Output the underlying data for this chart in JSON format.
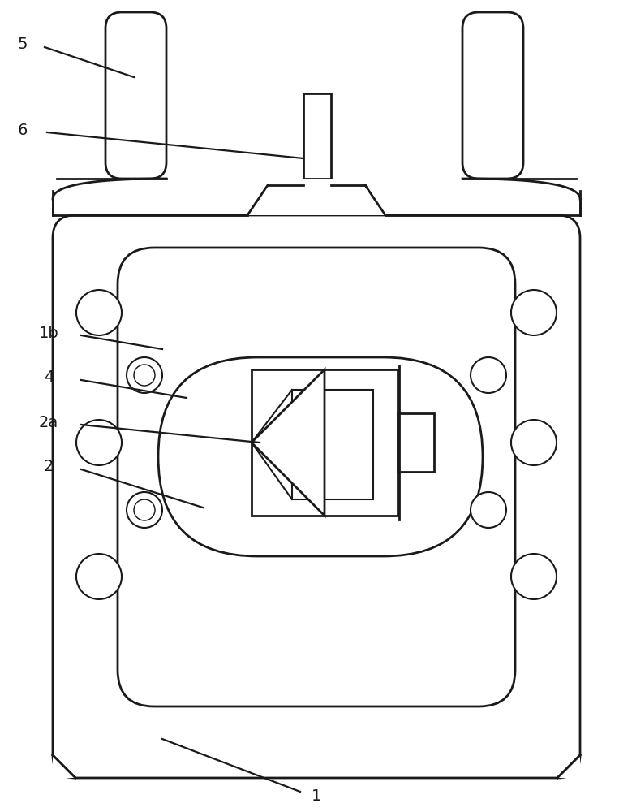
{
  "bg_color": "#ffffff",
  "line_color": "#1a1a1a",
  "lw_main": 2.0,
  "lw_thin": 1.5,
  "fig_width": 7.79,
  "fig_height": 10.0
}
